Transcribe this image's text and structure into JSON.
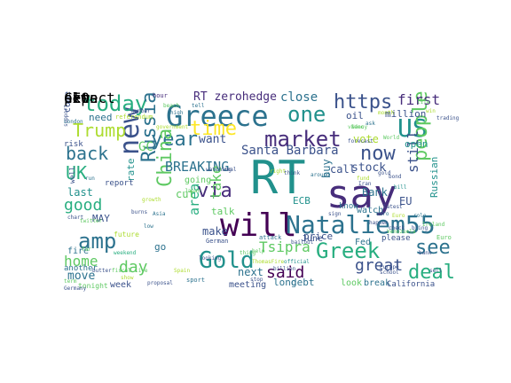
{
  "palette": [
    "#440154",
    "#472d7b",
    "#3b528b",
    "#2c728e",
    "#21918c",
    "#28ae80",
    "#5ec962",
    "#addc30",
    "#fde725"
  ],
  "words": [
    {
      "text": "RT",
      "color": "#21918c"
    },
    {
      "text": "say",
      "color": "#472d7b"
    },
    {
      "text": "Greece",
      "color": "#2c728e"
    },
    {
      "text": "will",
      "color": "#440154"
    },
    {
      "text": "Nataliem55",
      "color": "#2c728e"
    },
    {
      "text": "US",
      "color": "#21918c"
    },
    {
      "text": "new",
      "color": "#3b528b"
    },
    {
      "text": "market",
      "color": "#472d7b"
    },
    {
      "text": "Greek",
      "color": "#28ae80"
    },
    {
      "text": "Gold",
      "color": "#21918c"
    },
    {
      "text": "amp",
      "color": "#2c728e"
    },
    {
      "text": "today",
      "color": "#28ae80"
    },
    {
      "text": "one",
      "color": "#21918c"
    },
    {
      "text": "https",
      "color": "#3b528b"
    },
    {
      "text": "time",
      "color": "#fde725"
    },
    {
      "text": "year",
      "color": "#2c728e"
    },
    {
      "text": "China",
      "color": "#5ec962"
    },
    {
      "text": "Russia",
      "color": "#2c728e"
    },
    {
      "text": "via",
      "color": "#472d7b"
    },
    {
      "text": "people",
      "color": "#5ec962"
    },
    {
      "text": "now",
      "color": "#3b528b"
    },
    {
      "text": "deal",
      "color": "#28ae80"
    },
    {
      "text": "see",
      "color": "#2c728e"
    },
    {
      "text": "Trump",
      "color": "#addc30"
    },
    {
      "text": "UK",
      "color": "#28ae80"
    },
    {
      "text": "back",
      "color": "#2c728e"
    },
    {
      "text": "good",
      "color": "#28ae80"
    },
    {
      "text": "great",
      "color": "#3b528b"
    },
    {
      "text": "said",
      "color": "#440154"
    },
    {
      "text": "day",
      "color": "#5ec962"
    },
    {
      "text": "home",
      "color": "#5ec962"
    },
    {
      "text": "Tsipra",
      "color": "#5ec962"
    },
    {
      "text": "first",
      "color": "#472d7b"
    },
    {
      "text": "BREAKING",
      "color": "#2c728e"
    },
    {
      "text": "take",
      "color": "#5ec962"
    },
    {
      "text": "area",
      "color": "#28ae80"
    },
    {
      "text": "still",
      "color": "#3b528b"
    },
    {
      "text": "Santa Barbara",
      "color": "#3b528b"
    },
    {
      "text": "RT zerohedge",
      "color": "#472d7b"
    },
    {
      "text": "close",
      "color": "#2c728e"
    },
    {
      "text": "stock",
      "color": "#3b528b"
    },
    {
      "text": "call",
      "color": "#3b528b"
    },
    {
      "text": "GC",
      "color": "#5ec962"
    },
    {
      "text": "want",
      "color": "#3b528b"
    },
    {
      "text": "make",
      "color": "#3b528b"
    },
    {
      "text": "cut",
      "color": "#5ec962"
    },
    {
      "text": "talk",
      "color": "#5ec962"
    },
    {
      "text": "need",
      "color": "#2c728e"
    },
    {
      "text": "last",
      "color": "#21918c"
    },
    {
      "text": "move",
      "color": "#2c728e"
    },
    {
      "text": "rate",
      "color": "#21918c"
    },
    {
      "text": "next",
      "color": "#2c728e"
    },
    {
      "text": "buy",
      "color": "#2c728e"
    },
    {
      "text": "price",
      "color": "#3b528b"
    },
    {
      "text": "vote",
      "color": "#addc30"
    },
    {
      "text": "Bank",
      "color": "#2c728e"
    },
    {
      "text": "EU",
      "color": "#3b528b"
    },
    {
      "text": "ECB",
      "color": "#21918c"
    },
    {
      "text": "long",
      "color": "#2c728e"
    },
    {
      "text": "debt",
      "color": "#2c728e"
    },
    {
      "text": "Russian",
      "color": "#21918c"
    },
    {
      "text": "open",
      "color": "#21918c"
    },
    {
      "text": "oil",
      "color": "#3b528b"
    },
    {
      "text": "million",
      "color": "#3b528b"
    },
    {
      "text": "going",
      "color": "#5ec962"
    },
    {
      "text": "MAY",
      "color": "#3b528b"
    },
    {
      "text": "go",
      "color": "#2c728e"
    },
    {
      "text": "fire",
      "color": "#2c728e"
    },
    {
      "text": "week",
      "color": "#3b528b"
    },
    {
      "text": "June",
      "color": "#3b528b"
    },
    {
      "text": "Fed",
      "color": "#2c728e"
    },
    {
      "text": "look",
      "color": "#5ec962"
    },
    {
      "text": "break",
      "color": "#2c728e"
    },
    {
      "text": "meeting",
      "color": "#3b528b"
    },
    {
      "text": "come",
      "color": "#3b528b"
    },
    {
      "text": "watch",
      "color": "#2c728e"
    },
    {
      "text": "know",
      "color": "#2c728e"
    },
    {
      "text": "please",
      "color": "#3b528b"
    },
    {
      "text": "California",
      "color": "#3b528b"
    },
    {
      "text": "another",
      "color": "#2c728e"
    },
    {
      "text": "report",
      "color": "#3b528b"
    },
    {
      "text": "risk",
      "color": "#3b528b"
    },
    {
      "text": "tonight",
      "color": "#5ec962"
    },
    {
      "text": "well",
      "color": "#3b528b"
    },
    {
      "text": "support",
      "color": "#3b528b"
    },
    {
      "text": "hour",
      "color": "#472d7b"
    },
    {
      "text": "beach",
      "color": "#5ec962"
    },
    {
      "text": "tell",
      "color": "#2c728e"
    },
    {
      "text": "referendum",
      "color": "#addc30"
    },
    {
      "text": "German",
      "color": "#3b528b"
    },
    {
      "text": "Japan",
      "color": "#5ec962"
    },
    {
      "text": "future",
      "color": "#addc30"
    },
    {
      "text": "attack",
      "color": "#2c728e"
    },
    {
      "text": "around",
      "color": "#2c728e"
    },
    {
      "text": "Euro",
      "color": "#5ec962"
    },
    {
      "text": "trading",
      "color": "#3b528b"
    },
    {
      "text": "London",
      "color": "#2c728e"
    },
    {
      "text": "billion",
      "color": "#3b528b"
    },
    {
      "text": "official",
      "color": "#21918c"
    },
    {
      "text": "Europe",
      "color": "#3b528b"
    },
    {
      "text": "school",
      "color": "#3b528b"
    },
    {
      "text": "sport",
      "color": "#2c728e"
    },
    {
      "text": "proposal",
      "color": "#3b528b"
    },
    {
      "text": "weekend",
      "color": "#28ae80"
    },
    {
      "text": "Germany",
      "color": "#3b528b"
    },
    {
      "text": "sell",
      "color": "#3b528b"
    },
    {
      "text": "thing",
      "color": "#5ec962"
    },
    {
      "text": "ThomasFire",
      "color": "#addc30"
    },
    {
      "text": "month",
      "color": "#addc30"
    },
    {
      "text": "video",
      "color": "#5ec962"
    },
    {
      "text": "forecast",
      "color": "#3b528b"
    },
    {
      "text": "World",
      "color": "#5ec962"
    },
    {
      "text": "looking",
      "color": "#3b528b"
    },
    {
      "text": "help",
      "color": "#5ec962"
    },
    {
      "text": "chart",
      "color": "#3b528b"
    },
    {
      "text": "twitter",
      "color": "#5ec962"
    },
    {
      "text": "government",
      "color": "#addc30"
    },
    {
      "text": "high",
      "color": "#2c728e"
    },
    {
      "text": "number",
      "color": "#3b528b"
    },
    {
      "text": "run",
      "color": "#2c728e"
    },
    {
      "text": "stop",
      "color": "#3b528b"
    },
    {
      "text": "watching",
      "color": "#3b528b"
    },
    {
      "text": "real",
      "color": "#3b528b"
    },
    {
      "text": "think",
      "color": "#3b528b"
    },
    {
      "text": "right",
      "color": "#addc30"
    },
    {
      "text": "Venezuela",
      "color": "#5ec962"
    },
    {
      "text": "happen",
      "color": "#3b528b"
    },
    {
      "text": "euro",
      "color": "#2c728e"
    },
    {
      "text": "check",
      "color": "#3b528b"
    },
    {
      "text": "gold",
      "color": "#3b528b"
    },
    {
      "text": "bond",
      "color": "#3b528b"
    },
    {
      "text": "sign",
      "color": "#3b528b"
    },
    {
      "text": "Euro",
      "color": "#addc30"
    },
    {
      "text": "role",
      "color": "#2c728e"
    },
    {
      "text": "Nancy",
      "color": "#5ec962"
    },
    {
      "text": "ask",
      "color": "#2c728e"
    },
    {
      "text": "Iran",
      "color": "#3b528b"
    },
    {
      "text": "latest",
      "color": "#3b528b"
    },
    {
      "text": "bill",
      "color": "#21918c"
    },
    {
      "text": "fund",
      "color": "#addc30"
    },
    {
      "text": "bring",
      "color": "#3b528b"
    },
    {
      "text": "Ireland",
      "color": "#5ec962"
    },
    {
      "text": "Asia",
      "color": "#2c728e"
    },
    {
      "text": "low",
      "color": "#2c728e"
    },
    {
      "text": "bank",
      "color": "#3b528b"
    },
    {
      "text": "life",
      "color": "#5ec962"
    },
    {
      "text": "win",
      "color": "#addc30"
    },
    {
      "text": "live",
      "color": "#5ec962"
    },
    {
      "text": "Spain",
      "color": "#addc30"
    },
    {
      "text": "far",
      "color": "#5ec962"
    },
    {
      "text": "fiscal",
      "color": "#5ec962"
    },
    {
      "text": "bailout",
      "color": "#3b528b"
    },
    {
      "text": "growth",
      "color": "#addc30"
    },
    {
      "text": "term",
      "color": "#5ec962"
    },
    {
      "text": "show",
      "color": "#addc30"
    },
    {
      "text": "butter",
      "color": "#3b528b"
    },
    {
      "text": "burns",
      "color": "#3b528b"
    },
    {
      "text": "expect",
      "color": "#3b528b"
    },
    {
      "text": "news",
      "color": "#addc30"
    },
    {
      "text": "plan",
      "color": "#5ec962"
    },
    {
      "text": "set",
      "color": "#3b528b"
    },
    {
      "text": "CEO",
      "color": "#addc30"
    }
  ]
}
